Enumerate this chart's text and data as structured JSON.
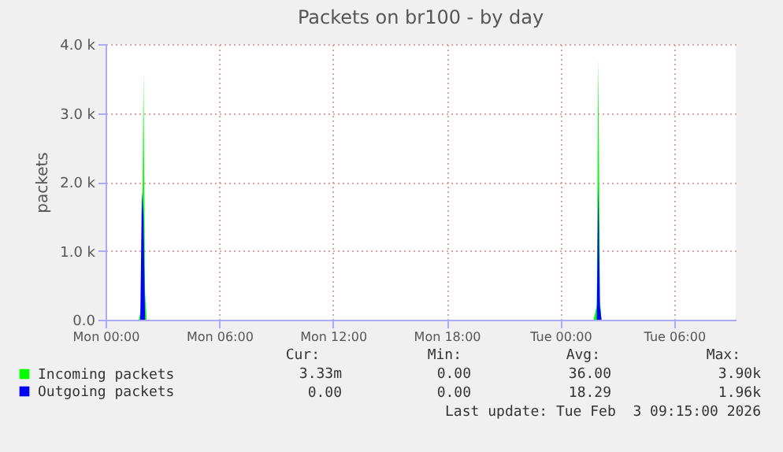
{
  "chart_data": {
    "type": "area",
    "title": "Packets on br100 - by day",
    "ylabel": "packets",
    "xlim": [
      "2026-02-02T00:00",
      "2026-02-03T09:15"
    ],
    "xticks": [
      {
        "value": "2026-02-02T00:00",
        "label": "Mon 00:00"
      },
      {
        "value": "2026-02-02T06:00",
        "label": "Mon 06:00"
      },
      {
        "value": "2026-02-02T12:00",
        "label": "Mon 12:00"
      },
      {
        "value": "2026-02-02T18:00",
        "label": "Mon 18:00"
      },
      {
        "value": "2026-02-03T00:00",
        "label": "Tue 00:00"
      },
      {
        "value": "2026-02-03T06:00",
        "label": "Tue 06:00"
      }
    ],
    "ylim": [
      0,
      4000
    ],
    "yticks": [
      {
        "value": 0,
        "label": "0.0"
      },
      {
        "value": 1000,
        "label": "1.0 k"
      },
      {
        "value": 2000,
        "label": "2.0 k"
      },
      {
        "value": 3000,
        "label": "3.0 k"
      },
      {
        "value": 4000,
        "label": "4.0 k"
      }
    ],
    "grid": true,
    "legend": "bottom",
    "series": [
      {
        "name": "Incoming packets",
        "color": "#00ff00",
        "x": [
          "2026-02-02T00:00",
          "2026-02-02T01:45",
          "2026-02-02T01:50",
          "2026-02-02T01:55",
          "2026-02-02T02:00",
          "2026-02-02T02:05",
          "2026-02-02T02:10",
          "2026-02-03T01:45",
          "2026-02-03T01:50",
          "2026-02-03T01:55",
          "2026-02-03T02:00",
          "2026-02-03T02:05",
          "2026-02-03T02:10",
          "2026-02-03T09:15"
        ],
        "values": [
          0,
          0,
          100,
          300,
          3600,
          400,
          0,
          0,
          100,
          200,
          3800,
          300,
          0,
          0
        ]
      },
      {
        "name": "Outgoing packets",
        "color": "#0000ff",
        "x": [
          "2026-02-02T00:00",
          "2026-02-02T01:50",
          "2026-02-02T01:55",
          "2026-02-02T02:00",
          "2026-02-02T02:05",
          "2026-02-03T01:55",
          "2026-02-03T02:00",
          "2026-02-03T02:05",
          "2026-02-03T02:10",
          "2026-02-03T09:15"
        ],
        "values": [
          0,
          0,
          1870,
          1500,
          0,
          0,
          1960,
          200,
          0,
          0
        ]
      }
    ],
    "annotations": [
      "Cur:",
      "Min:",
      "Avg:",
      "Max:",
      "3.33m",
      "0.00",
      "36.00",
      "3.90k",
      "0.00",
      "0.00",
      "18.29",
      "1.96k",
      "Last update: Tue Feb  3 09:15:00 2026"
    ]
  }
}
